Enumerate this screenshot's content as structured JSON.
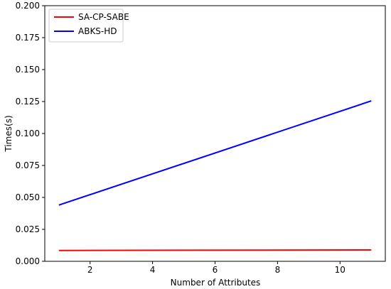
{
  "chart_data": {
    "type": "line",
    "title": "",
    "xlabel": "Number of Attributes",
    "ylabel": "Times(s)",
    "xlim": [
      0.55,
      11.45
    ],
    "ylim": [
      0.0,
      0.2
    ],
    "xticks": [
      2,
      4,
      6,
      8,
      10
    ],
    "xtick_labels": [
      "2",
      "4",
      "6",
      "8",
      "10"
    ],
    "yticks": [
      0.0,
      0.025,
      0.05,
      0.075,
      0.1,
      0.125,
      0.15,
      0.175,
      0.2
    ],
    "ytick_labels": [
      "0.000",
      "0.025",
      "0.050",
      "0.075",
      "0.100",
      "0.125",
      "0.150",
      "0.175",
      "0.200"
    ],
    "grid": false,
    "legend_position": "top-left",
    "series": [
      {
        "name": "SA-CP-SABE",
        "color": "#ff0000",
        "x": [
          1,
          11
        ],
        "y": [
          0.0085,
          0.0089
        ]
      },
      {
        "name": "ABKS-HD",
        "color": "#0000ff",
        "x": [
          1,
          11
        ],
        "y": [
          0.044,
          0.1255
        ]
      }
    ]
  }
}
